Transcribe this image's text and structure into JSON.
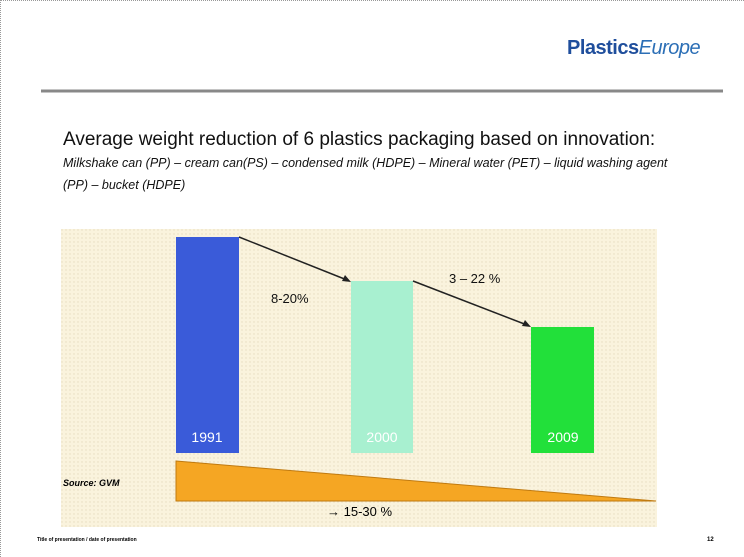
{
  "header": {
    "logo_main": "Plastics",
    "logo_accent": "Europe"
  },
  "title": {
    "main": "Average weight reduction of 6 plastics packaging based on innovation:",
    "detail": "Milkshake can (PP) – cream can(PS) – condensed milk (HDPE) – Mineral water (PET) – liquid washing agent (PP) – bucket (HDPE)"
  },
  "figure": {
    "bars": [
      {
        "label": "1991"
      },
      {
        "label": "2000"
      },
      {
        "label": "2009"
      }
    ],
    "steps": [
      "8-20%",
      "3 – 22 %"
    ],
    "source": "Source: GVM",
    "overall": "→ 15-30 %"
  },
  "footer": {
    "left": "Title of presentation / date of presentation",
    "page": "12"
  }
}
